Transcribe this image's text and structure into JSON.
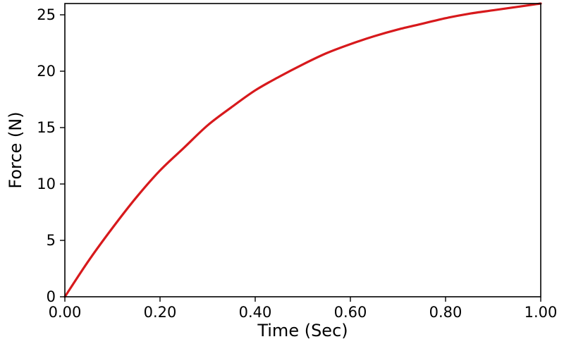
{
  "chart_data": {
    "type": "line",
    "title": "",
    "xlabel": "Time (Sec)",
    "ylabel": "Force (N)",
    "xlim": [
      0,
      1
    ],
    "ylim": [
      0,
      26
    ],
    "xticks": [
      0,
      0.2,
      0.4,
      0.6,
      0.8,
      1.0
    ],
    "xtick_labels": [
      "0.00",
      "0.20",
      "0.40",
      "0.60",
      "0.80",
      "1.00"
    ],
    "yticks": [
      0,
      5,
      10,
      15,
      20,
      25
    ],
    "ytick_labels": [
      "0",
      "5",
      "10",
      "15",
      "20",
      "25"
    ],
    "grid": false,
    "legend": "none",
    "series": [
      {
        "color": "#d7191c",
        "x": [
          0,
          0.05,
          0.1,
          0.15,
          0.2,
          0.25,
          0.3,
          0.35,
          0.4,
          0.45,
          0.5,
          0.55,
          0.6,
          0.65,
          0.7,
          0.75,
          0.8,
          0.85,
          0.9,
          0.95,
          1.0
        ],
        "y": [
          0,
          3.2,
          6.1,
          8.8,
          11.2,
          13.2,
          15.2,
          16.8,
          18.3,
          19.5,
          20.6,
          21.6,
          22.4,
          23.1,
          23.7,
          24.2,
          24.7,
          25.1,
          25.4,
          25.7,
          26.0
        ]
      }
    ]
  }
}
